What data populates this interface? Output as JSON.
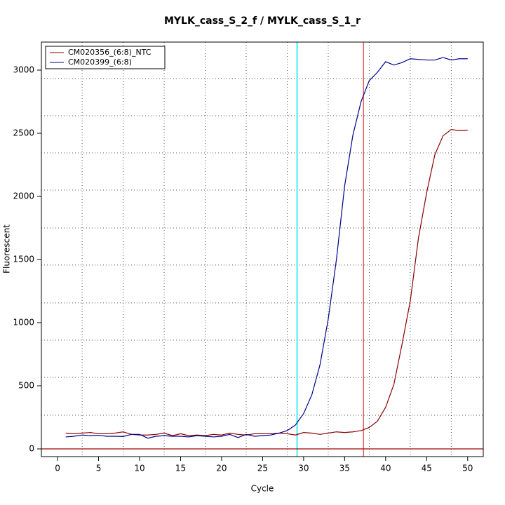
{
  "chart_data": {
    "type": "line",
    "title": "MYLK_cass_S_2_f / MYLK_cass_S_1_r",
    "x_label": "Cycle",
    "y_label": "Fluorescent",
    "x": [
      1,
      2,
      3,
      4,
      5,
      6,
      7,
      8,
      9,
      10,
      11,
      12,
      13,
      14,
      15,
      16,
      17,
      18,
      19,
      20,
      21,
      22,
      23,
      24,
      25,
      26,
      27,
      28,
      29,
      30,
      31,
      32,
      33,
      34,
      35,
      36,
      37,
      38,
      39,
      40,
      41,
      42,
      43,
      44,
      45,
      46,
      47,
      48,
      49,
      50
    ],
    "series": [
      {
        "name": "CM020356_(6:8)_NTC",
        "color": "#8b0000",
        "values": [
          125,
          120,
          125,
          130,
          120,
          120,
          125,
          135,
          115,
          110,
          110,
          115,
          125,
          105,
          120,
          105,
          110,
          105,
          115,
          110,
          125,
          115,
          110,
          120,
          120,
          120,
          125,
          120,
          110,
          130,
          125,
          115,
          125,
          135,
          130,
          135,
          145,
          170,
          220,
          330,
          510,
          830,
          1170,
          1670,
          2030,
          2330,
          2480,
          2530,
          2520,
          2525
        ]
      },
      {
        "name": "CM020399_(6:8)",
        "color": "#00008b",
        "values": [
          95,
          100,
          110,
          105,
          108,
          100,
          100,
          98,
          115,
          115,
          85,
          100,
          105,
          100,
          100,
          95,
          105,
          100,
          95,
          100,
          115,
          90,
          115,
          100,
          105,
          110,
          125,
          145,
          189,
          280,
          428,
          667,
          1028,
          1500,
          2083,
          2483,
          2750,
          2917,
          2983,
          3067,
          3040,
          3060,
          3090,
          3085,
          3080,
          3080,
          3100,
          3080,
          3090,
          3090
        ]
      }
    ],
    "xlim": [
      -1.97,
      51.9
    ],
    "ylim": [
      -61,
      3222
    ],
    "xticks": [
      0,
      5,
      10,
      15,
      20,
      25,
      30,
      35,
      40,
      45,
      50
    ],
    "yticks": [
      0,
      500,
      1000,
      1500,
      2000,
      2500,
      3000
    ],
    "xgrid": [
      3,
      8,
      13,
      18,
      23,
      28,
      33,
      38,
      43,
      48
    ],
    "ygrid": [
      267,
      567,
      861,
      1156,
      1456,
      1750,
      2050,
      2344,
      2639,
      2933
    ],
    "vlines": [
      {
        "x": 29.2,
        "color": "#00e5ee"
      },
      {
        "x": 37.3,
        "color": "#e06060"
      }
    ],
    "hline": {
      "y": 0,
      "color": "#a00000"
    },
    "legend": "top-left"
  }
}
